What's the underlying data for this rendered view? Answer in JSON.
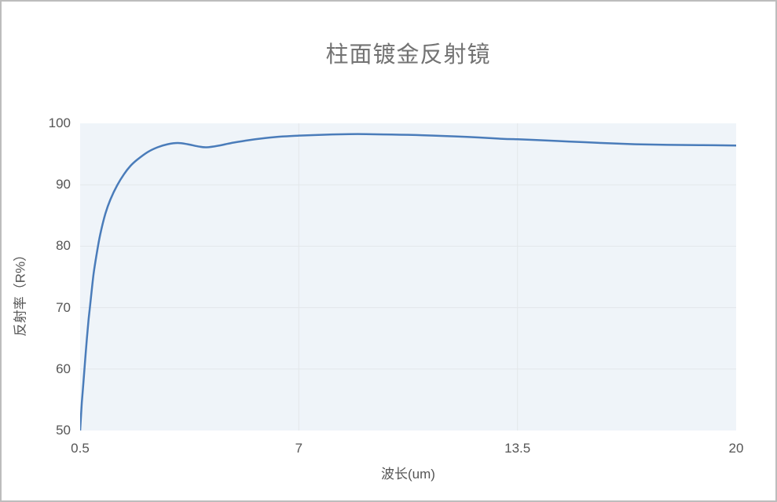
{
  "window": {
    "background": "#ffffff",
    "border_color": "#bdbdbd"
  },
  "chart_data": {
    "type": "line",
    "title": "柱面镀金反射镜",
    "xlabel": "波长(um)",
    "ylabel": "反射率（R%）",
    "xlim": [
      0.5,
      20
    ],
    "ylim": [
      50,
      100
    ],
    "xticks": [
      0.5,
      7,
      13.5,
      20
    ],
    "yticks": [
      50,
      60,
      70,
      80,
      90,
      100
    ],
    "grid": true,
    "legend": false,
    "colors": {
      "line": "#4a7cba",
      "plot_background": "#eff4f9",
      "grid_line": "#e3e7ea",
      "tick_text": "#555555",
      "title_text": "#737373"
    },
    "series": [
      {
        "name": "反射率",
        "x": [
          0.5,
          0.55,
          0.6,
          0.65,
          0.7,
          0.75,
          0.8,
          0.9,
          1.0,
          1.1,
          1.25,
          1.4,
          1.6,
          1.8,
          2.0,
          2.2,
          2.5,
          2.8,
          3.1,
          3.4,
          3.7,
          4.0,
          4.25,
          4.6,
          5.0,
          5.5,
          6.0,
          6.5,
          7.0,
          7.5,
          8.0,
          8.5,
          9.0,
          9.5,
          10.0,
          10.5,
          11.0,
          12.0,
          13.0,
          13.5,
          14.0,
          15.0,
          16.0,
          17.0,
          18.0,
          19.0,
          20.0
        ],
        "y": [
          50.0,
          54.5,
          58.0,
          61.5,
          65.0,
          68.0,
          70.5,
          75.5,
          79.0,
          82.0,
          85.3,
          87.6,
          89.9,
          91.7,
          93.1,
          94.1,
          95.3,
          96.1,
          96.6,
          96.8,
          96.6,
          96.25,
          96.1,
          96.35,
          96.8,
          97.25,
          97.6,
          97.85,
          98.0,
          98.1,
          98.2,
          98.25,
          98.25,
          98.2,
          98.15,
          98.1,
          98.0,
          97.8,
          97.5,
          97.4,
          97.3,
          97.05,
          96.8,
          96.6,
          96.5,
          96.45,
          96.4
        ]
      }
    ]
  }
}
